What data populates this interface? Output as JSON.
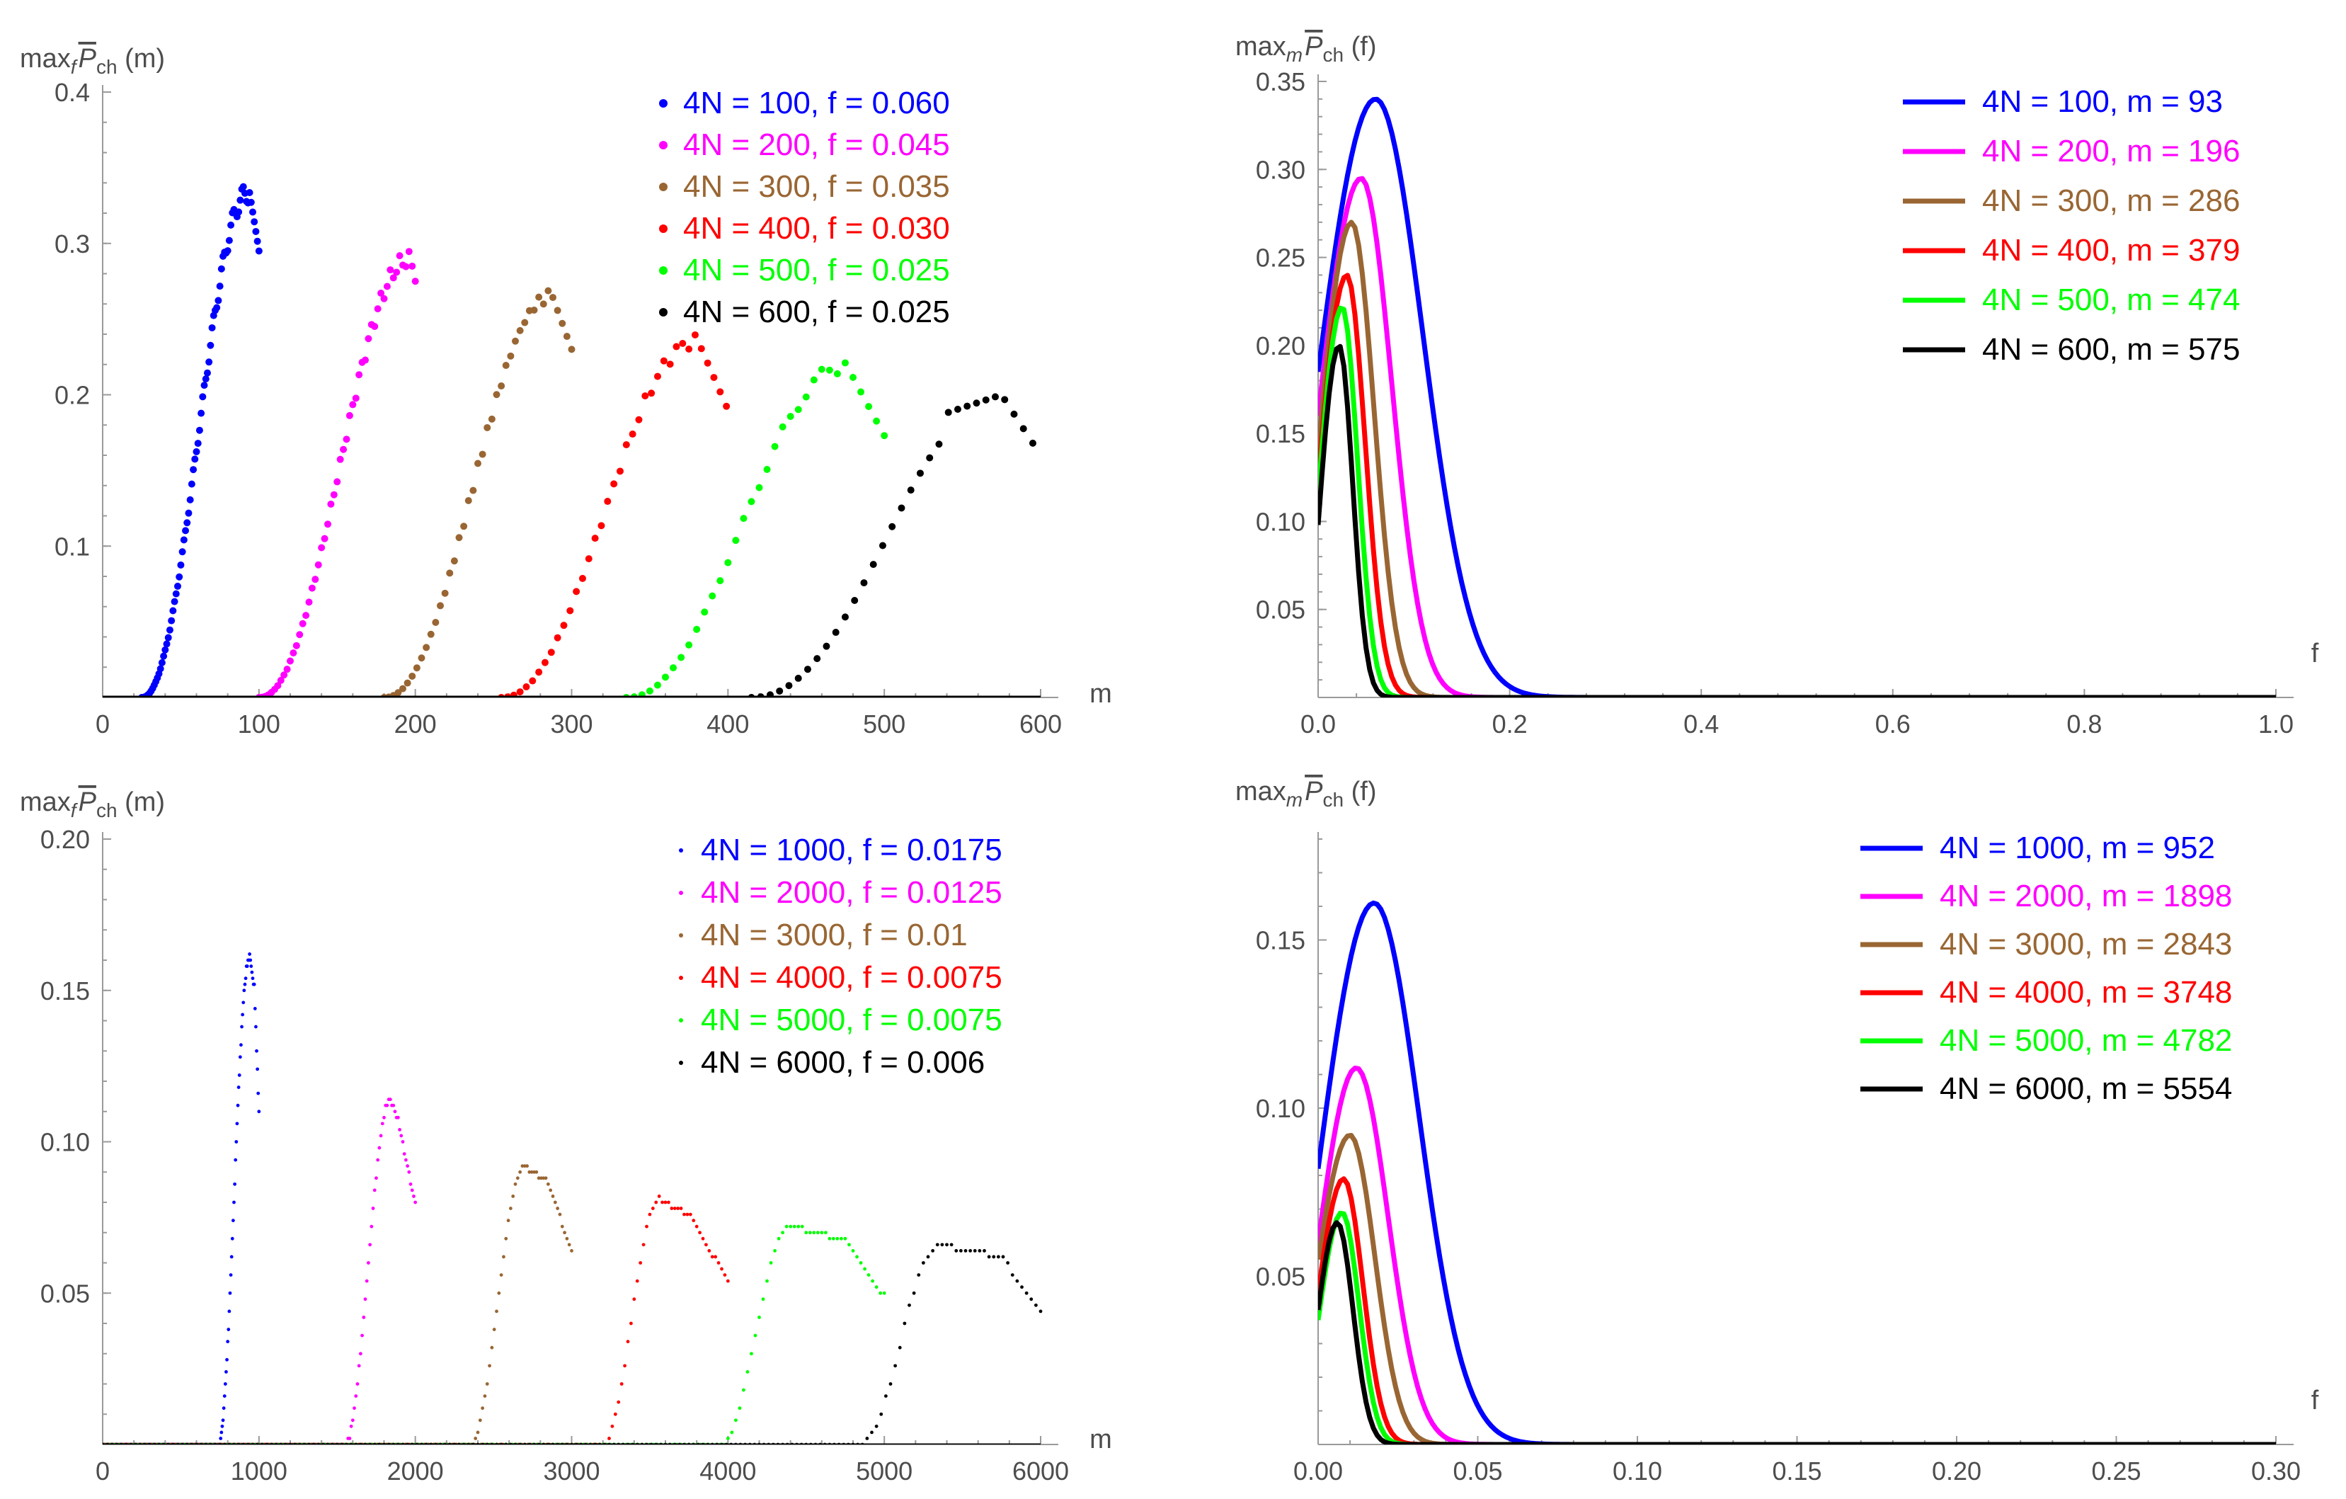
{
  "chart_data": [
    {
      "id": "p1",
      "type": "scatter",
      "ylabel": {
        "prefix": "max",
        "sub": "f",
        "sym": "P",
        "symsub": "ch",
        "arg": "(m)"
      },
      "xlabel": "m",
      "xlim": [
        0,
        600
      ],
      "ylim": [
        0,
        0.4
      ],
      "xticks": [
        0,
        100,
        200,
        300,
        400,
        500,
        600
      ],
      "xtick_labels": [
        "0",
        "100",
        "200",
        "300",
        "400",
        "500",
        "600"
      ],
      "yticks": [
        0.1,
        0.2,
        0.3,
        0.4
      ],
      "ytick_labels": [
        "0.1",
        "0.2",
        "0.3",
        "0.4"
      ],
      "legend": [
        "4N = 100, f = 0.060",
        "4N = 200, f = 0.045",
        "4N = 300, f = 0.035",
        "4N = 400, f = 0.030",
        "4N = 500, f = 0.025",
        "4N = 600, f = 0.025"
      ],
      "series": [
        {
          "name": "4N = 100, f = 0.060",
          "color": "#0000ff",
          "xmin": 0,
          "xmax": 100,
          "center": 93,
          "width": 24,
          "peak": 0.34,
          "peak_x": 93,
          "end_value": 0.295,
          "start": 25
        },
        {
          "name": "4N = 200, f = 0.045",
          "color": "#ff00ff",
          "xmin": 0,
          "xmax": 200,
          "center": 196,
          "width": 38,
          "peak": 0.295,
          "peak_x": 196,
          "end_value": 0.275,
          "start": 100
        },
        {
          "name": "4N = 300, f = 0.035",
          "color": "#996633",
          "xmin": 0,
          "xmax": 300,
          "center": 286,
          "width": 48,
          "peak": 0.27,
          "peak_x": 286,
          "end_value": 0.23,
          "start": 180
        },
        {
          "name": "4N = 400, f = 0.030",
          "color": "#ff0000",
          "xmin": 0,
          "xmax": 400,
          "center": 379,
          "width": 58,
          "peak": 0.24,
          "peak_x": 379,
          "end_value": 0.19,
          "start": 255
        },
        {
          "name": "4N = 500, f = 0.025",
          "color": "#00ff00",
          "xmin": 0,
          "xmax": 500,
          "center": 474,
          "width": 70,
          "peak": 0.223,
          "peak_x": 474,
          "end_value": 0.173,
          "start": 335
        },
        {
          "name": "4N = 600, f = 0.025",
          "color": "#000000",
          "xmin": 0,
          "xmax": 600,
          "center": 575,
          "width": 88,
          "peak": 0.2,
          "peak_x": 575,
          "end_value": 0.16,
          "start": 415
        }
      ]
    },
    {
      "id": "p2",
      "type": "line",
      "ylabel": {
        "prefix": "max",
        "sub": "m",
        "sym": "P",
        "symsub": "ch",
        "arg": "(f)"
      },
      "xlabel": "f",
      "xlim": [
        0,
        1.0
      ],
      "ylim": [
        0,
        0.35
      ],
      "xticks": [
        0,
        0.2,
        0.4,
        0.6,
        0.8,
        1.0
      ],
      "xtick_labels": [
        "0.0",
        "0.2",
        "0.4",
        "0.6",
        "0.8",
        "1.0"
      ],
      "yticks": [
        0.05,
        0.1,
        0.15,
        0.2,
        0.25,
        0.3,
        0.35
      ],
      "ytick_labels": [
        "0.05",
        "0.10",
        "0.15",
        "0.20",
        "0.25",
        "0.30",
        "0.35"
      ],
      "legend": [
        "4N = 100, m = 93",
        "4N = 200, m = 196",
        "4N = 300, m = 286",
        "4N = 400, m = 379",
        "4N = 500, m = 474",
        "4N = 600, m = 575"
      ],
      "series": [
        {
          "name": "4N = 100, m = 93",
          "color": "#0000ff",
          "y0": 0.185,
          "peak": 0.34,
          "peak_x": 0.06,
          "decay": 0.07
        },
        {
          "name": "4N = 200, m = 196",
          "color": "#ff00ff",
          "y0": 0.16,
          "peak": 0.295,
          "peak_x": 0.045,
          "decay": 0.045
        },
        {
          "name": "4N = 300, m = 286",
          "color": "#996633",
          "y0": 0.14,
          "peak": 0.27,
          "peak_x": 0.035,
          "decay": 0.033
        },
        {
          "name": "4N = 400, m = 379",
          "color": "#ff0000",
          "y0": 0.125,
          "peak": 0.24,
          "peak_x": 0.03,
          "decay": 0.027
        },
        {
          "name": "4N = 500, m = 474",
          "color": "#00ff00",
          "y0": 0.115,
          "peak": 0.222,
          "peak_x": 0.025,
          "decay": 0.023
        },
        {
          "name": "4N = 600, m = 575",
          "color": "#000000",
          "y0": 0.098,
          "peak": 0.2,
          "peak_x": 0.022,
          "decay": 0.02
        }
      ]
    },
    {
      "id": "p3",
      "type": "scatter",
      "ylabel": {
        "prefix": "max",
        "sub": "f",
        "sym": "P",
        "symsub": "ch",
        "arg": "(m)"
      },
      "xlabel": "m",
      "xlim": [
        0,
        6000
      ],
      "ylim": [
        0,
        0.2
      ],
      "xticks": [
        0,
        1000,
        2000,
        3000,
        4000,
        5000,
        6000
      ],
      "xtick_labels": [
        "0",
        "1000",
        "2000",
        "3000",
        "4000",
        "5000",
        "6000"
      ],
      "yticks": [
        0.05,
        0.1,
        0.15,
        0.2
      ],
      "ytick_labels": [
        "0.05",
        "0.10",
        "0.15",
        "0.20"
      ],
      "legend": [
        "4N = 1000, f = 0.0175",
        "4N = 2000, f = 0.0125",
        "4N = 3000, f = 0.01",
        "4N = 4000, f = 0.0075",
        "4N = 5000, f = 0.0075",
        "4N = 6000, f = 0.006"
      ],
      "series": [
        {
          "name": "4N = 1000, f = 0.0175",
          "color": "#0000ff",
          "xmax": 1000,
          "start": 740,
          "rise_end": 940,
          "peak": 0.161,
          "plateau_end": 970,
          "end_value": 0.109
        },
        {
          "name": "4N = 2000, f = 0.0125",
          "color": "#ff00ff",
          "xmax": 2000,
          "start": 1550,
          "rise_end": 1840,
          "peak": 0.114,
          "plateau_end": 1890,
          "end_value": 0.079
        },
        {
          "name": "4N = 3000, f = 0.01",
          "color": "#996633",
          "xmax": 3000,
          "start": 2350,
          "rise_end": 2700,
          "peak": 0.092,
          "plateau_end": 2850,
          "end_value": 0.064
        },
        {
          "name": "4N = 4000, f = 0.0075",
          "color": "#ff0000",
          "xmax": 4000,
          "start": 3200,
          "rise_end": 3560,
          "peak": 0.081,
          "plateau_end": 3750,
          "end_value": 0.054
        },
        {
          "name": "4N = 5000, f = 0.0075",
          "color": "#00ff00",
          "xmax": 5000,
          "start": 3950,
          "rise_end": 4400,
          "peak": 0.072,
          "plateau_end": 4750,
          "end_value": 0.049
        },
        {
          "name": "4N = 6000, f = 0.006",
          "color": "#000000",
          "xmax": 6000,
          "start": 4850,
          "rise_end": 5350,
          "peak": 0.066,
          "plateau_end": 5750,
          "end_value": 0.044
        }
      ]
    },
    {
      "id": "p4",
      "type": "line",
      "ylabel": {
        "prefix": "max",
        "sub": "m",
        "sym": "P",
        "symsub": "ch",
        "arg": "(f)"
      },
      "xlabel": "f",
      "xlim": [
        0,
        0.3
      ],
      "ylim": [
        0,
        0.18
      ],
      "xticks": [
        0,
        0.05,
        0.1,
        0.15,
        0.2,
        0.25,
        0.3
      ],
      "xtick_labels": [
        "0.00",
        "0.05",
        "0.10",
        "0.15",
        "0.20",
        "0.25",
        "0.30"
      ],
      "yticks": [
        0.05,
        0.1,
        0.15
      ],
      "ytick_labels": [
        "0.05",
        "0.10",
        "0.15"
      ],
      "legend": [
        "4N = 1000, m = 952",
        "4N = 2000, m = 1898",
        "4N = 3000, m = 2843",
        "4N = 4000, m = 3748",
        "4N = 5000, m = 4782",
        "4N = 6000, m = 5554"
      ],
      "series": [
        {
          "name": "4N = 1000, m = 952",
          "color": "#0000ff",
          "y0": 0.082,
          "peak": 0.161,
          "peak_x": 0.0175,
          "decay": 0.02
        },
        {
          "name": "4N = 2000, m = 1898",
          "color": "#ff00ff",
          "y0": 0.06,
          "peak": 0.112,
          "peak_x": 0.012,
          "decay": 0.014
        },
        {
          "name": "4N = 3000, m = 2843",
          "color": "#996633",
          "y0": 0.055,
          "peak": 0.092,
          "peak_x": 0.01,
          "decay": 0.011
        },
        {
          "name": "4N = 4000, m = 3748",
          "color": "#ff0000",
          "y0": 0.045,
          "peak": 0.079,
          "peak_x": 0.008,
          "decay": 0.0085
        },
        {
          "name": "4N = 5000, m = 4782",
          "color": "#00ff00",
          "y0": 0.037,
          "peak": 0.069,
          "peak_x": 0.0075,
          "decay": 0.0075
        },
        {
          "name": "4N = 6000, m = 5554",
          "color": "#000000",
          "y0": 0.04,
          "peak": 0.066,
          "peak_x": 0.006,
          "decay": 0.007
        }
      ]
    }
  ]
}
